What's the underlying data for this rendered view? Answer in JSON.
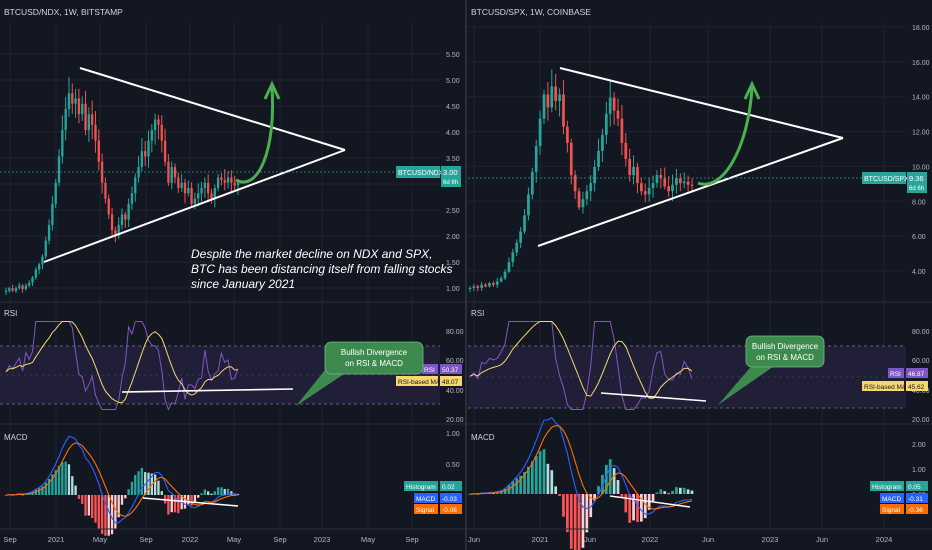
{
  "colors": {
    "background": "#131722",
    "grid": "#1f2330",
    "divider": "#2a2e39",
    "up": "#26a69a",
    "down": "#ef5350",
    "triangle": "#ffffff",
    "arrow": "#4caf50",
    "rsi_line": "#7e57c2",
    "rsi_ma": "#f5d76e",
    "rsi_band": "#241f3a",
    "macd_line": "#2962ff",
    "signal_line": "#ff6d00",
    "annotation_box": "#3d8a4f",
    "price_label": "#26a69a"
  },
  "annotation_text": {
    "lines": [
      "Despite the market decline on NDX and SPX,",
      "BTC has been distancing itself from falling stocks",
      "since January 2021"
    ]
  },
  "panels": {
    "left": {
      "symbol_title": "BTCUSD/NDX, 1W, BITSTAMP",
      "rsi_pane_label": "RSI",
      "macd_pane_label": "MACD",
      "price_tag": {
        "symbol": "BTCUSD/NDX",
        "value": "3.00",
        "countdown": "6d 6h"
      },
      "rsi_tags": [
        {
          "label": "RSI",
          "value": "50.37",
          "kind": "rsi"
        },
        {
          "label": "RSI-based MA",
          "value": "48.07",
          "kind": "ma"
        }
      ],
      "macd_tags": [
        {
          "label": "Histogram",
          "value": "0.02",
          "kind": "hist"
        },
        {
          "label": "MACD",
          "value": "-0.03",
          "kind": "macd"
        },
        {
          "label": "Signal",
          "value": "-0.06",
          "kind": "signal"
        }
      ],
      "divergence_note": [
        "Bullish Divergence",
        "on RSI & MACD"
      ],
      "time_axis": [
        "Sep",
        "2021",
        "May",
        "Sep",
        "2022",
        "May",
        "Sep",
        "2023",
        "May",
        "Sep"
      ],
      "price_axis": [
        "5.50",
        "5.00",
        "4.50",
        "4.00",
        "3.50",
        "3.00",
        "2.50",
        "2.00",
        "1.50",
        "1.00"
      ],
      "rsi_axis": [
        "80.00",
        "60.00",
        "40.00",
        "20.00"
      ],
      "macd_axis": [
        "1.00",
        "0.50",
        "0.00"
      ]
    },
    "right": {
      "symbol_title": "BTCUSD/SPX, 1W, COINBASE",
      "rsi_pane_label": "RSI",
      "macd_pane_label": "MACD",
      "price_tag": {
        "symbol": "BTCUSD/SPX",
        "value": "9.36",
        "countdown": "6d 6h"
      },
      "rsi_tags": [
        {
          "label": "RSI",
          "value": "46.87",
          "kind": "rsi"
        },
        {
          "label": "RSI-based MA",
          "value": "45.62",
          "kind": "ma"
        }
      ],
      "macd_tags": [
        {
          "label": "Histogram",
          "value": "0.05",
          "kind": "hist"
        },
        {
          "label": "MACD",
          "value": "-0.31",
          "kind": "macd"
        },
        {
          "label": "Signal",
          "value": "-0.36",
          "kind": "signal"
        }
      ],
      "divergence_note": [
        "Bullish Divergence",
        "on RSI & MACD"
      ],
      "time_axis": [
        "Jun",
        "2021",
        "Jun",
        "2022",
        "Jun",
        "2023",
        "Jun",
        "2024"
      ],
      "price_axis": [
        "18.00",
        "16.00",
        "14.00",
        "12.00",
        "10.00",
        "8.00",
        "6.00",
        "4.00"
      ],
      "rsi_axis": [
        "80.00",
        "60.00",
        "40.00",
        "20.00"
      ],
      "macd_axis": [
        "2.00",
        "1.00",
        "0.00"
      ]
    }
  },
  "chart_data": [
    {
      "type": "candlestick",
      "title": "BTCUSD/NDX, 1W, BITSTAMP",
      "ylim": [
        0.85,
        5.9
      ],
      "current_value": 3.0,
      "close_series_approx": [
        0.95,
        1.0,
        0.95,
        1.0,
        1.05,
        0.98,
        1.05,
        1.1,
        1.2,
        1.35,
        1.45,
        1.6,
        1.9,
        2.2,
        2.6,
        3.0,
        3.5,
        4.0,
        4.4,
        4.7,
        4.5,
        4.6,
        4.3,
        4.5,
        4.0,
        4.3,
        4.1,
        3.8,
        3.4,
        3.0,
        2.7,
        2.4,
        2.1,
        2.0,
        2.2,
        2.4,
        2.3,
        2.6,
        2.8,
        3.1,
        3.3,
        3.6,
        3.5,
        3.8,
        4.0,
        4.2,
        4.1,
        3.8,
        3.4,
        3.0,
        3.3,
        3.1,
        2.9,
        3.0,
        2.8,
        2.9,
        2.6,
        2.7,
        2.8,
        2.9,
        3.0,
        2.8,
        2.7,
        2.9,
        3.1,
        3.05,
        3.0,
        3.1,
        3.0,
        2.95,
        3.0
      ],
      "trendline_upper": {
        "from": "2021-01 peak ≈ 4.75",
        "to": "apex ≈ 3.3"
      },
      "trendline_lower": {
        "from": "≈ 1.45",
        "to": "apex ≈ 3.3"
      },
      "rsi": {
        "ylim": [
          10,
          95
        ],
        "band": [
          30,
          70
        ],
        "last": 50.37,
        "ma_last": 48.07
      },
      "macd": {
        "last_macd": -0.03,
        "last_signal": -0.06,
        "last_hist": 0.02
      }
    },
    {
      "type": "candlestick",
      "title": "BTCUSD/SPX, 1W, COINBASE",
      "ylim": [
        2.5,
        19
      ],
      "current_value": 9.36,
      "close_series_approx": [
        3.0,
        3.1,
        3.0,
        3.2,
        3.1,
        3.3,
        3.2,
        3.4,
        3.6,
        4.0,
        4.6,
        5.2,
        5.8,
        6.5,
        7.5,
        8.8,
        10.2,
        11.8,
        13.5,
        15.0,
        14.2,
        15.5,
        14.6,
        15.0,
        13.0,
        12.0,
        10.0,
        9.0,
        8.0,
        8.5,
        9.0,
        9.5,
        10.5,
        11.5,
        12.5,
        13.8,
        14.8,
        14.0,
        13.5,
        12.0,
        11.0,
        10.0,
        10.5,
        9.5,
        9.0,
        8.8,
        9.2,
        9.5,
        10.0,
        9.8,
        9.3,
        9.0,
        9.4,
        9.8,
        9.5,
        9.6,
        9.4,
        9.36
      ],
      "trendline_upper": {
        "from": "≈ 15.6",
        "to": "apex ≈ 11.5"
      },
      "trendline_lower": {
        "from": "≈ 5.6",
        "to": "apex ≈ 11.5"
      },
      "rsi": {
        "ylim": [
          10,
          95
        ],
        "band": [
          30,
          70
        ],
        "last": 46.87,
        "ma_last": 45.62
      },
      "macd": {
        "last_macd": -0.31,
        "last_signal": -0.36,
        "last_hist": 0.05
      }
    }
  ]
}
